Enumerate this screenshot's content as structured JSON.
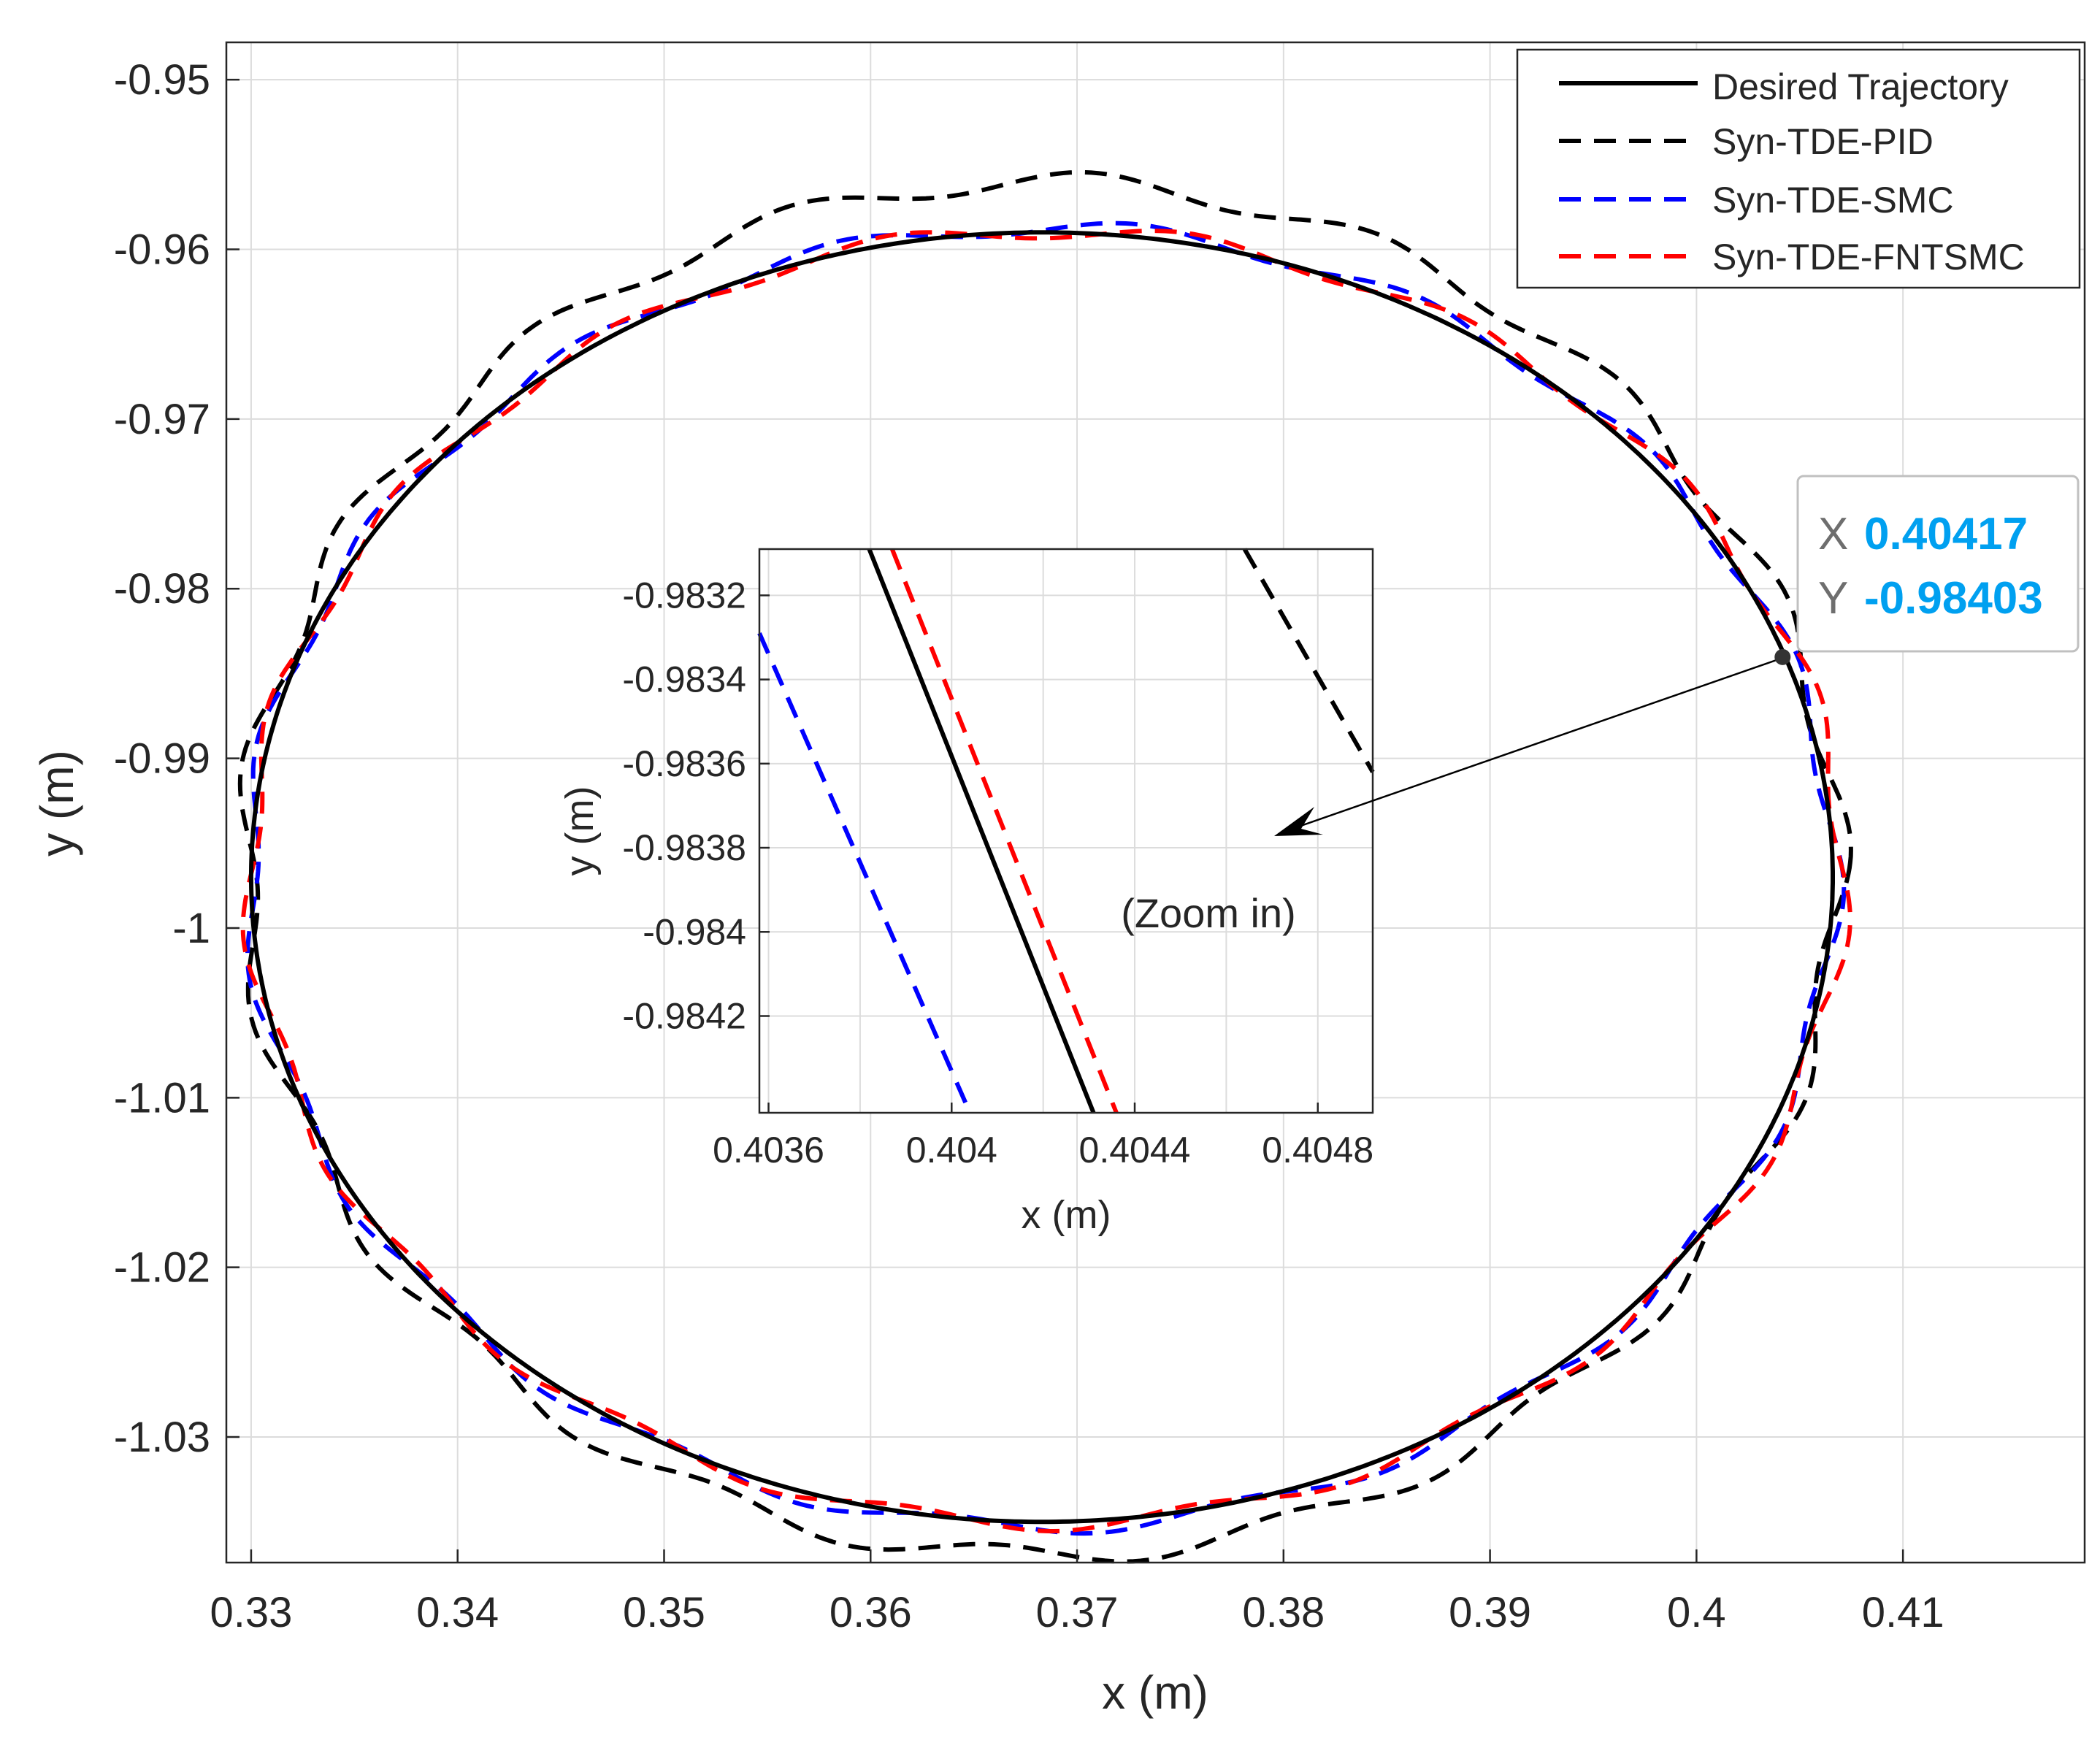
{
  "chart_data": {
    "type": "line",
    "xlabel": "x (m)",
    "ylabel": "y (m)",
    "xlim": [
      0.3288,
      0.4188
    ],
    "ylim": [
      -1.0374,
      -0.9478
    ],
    "xticks": [
      0.33,
      0.34,
      0.35,
      0.36,
      0.37,
      0.38,
      0.39,
      0.4,
      0.41
    ],
    "xtick_labels": [
      "0.33",
      "0.34",
      "0.35",
      "0.36",
      "0.37",
      "0.38",
      "0.39",
      "0.4",
      "0.41"
    ],
    "yticks": [
      -0.95,
      -0.96,
      -0.97,
      -0.98,
      -0.99,
      -1.0,
      -1.01,
      -1.02,
      -1.03
    ],
    "ytick_labels": [
      "-0.95",
      "-0.96",
      "-0.97",
      "-0.98",
      "-0.99",
      "-1",
      "-1.01",
      "-1.02",
      "-1.03"
    ],
    "grid": true,
    "legend_position": "top-right",
    "series": [
      {
        "name": "Desired Trajectory",
        "color": "#000000",
        "style": "solid",
        "shape": {
          "type": "ellipse",
          "center": [
            0.3683,
            -0.997
          ],
          "semi_axes": [
            0.0383,
            0.038
          ]
        }
      },
      {
        "name": "Syn-TDE-PID",
        "color": "#000000",
        "style": "dashed",
        "shape": {
          "type": "ellipse",
          "center": [
            0.3683,
            -0.9965
          ],
          "semi_axes": [
            0.0386,
            0.0405
          ]
        }
      },
      {
        "name": "Syn-TDE-SMC",
        "color": "#0000ff",
        "style": "dashed",
        "shape": {
          "type": "ellipse",
          "center": [
            0.3683,
            -0.997
          ],
          "semi_axes": [
            0.0384,
            0.0383
          ]
        }
      },
      {
        "name": "Syn-TDE-FNTSMC",
        "color": "#ff0000",
        "style": "dashed",
        "shape": {
          "type": "ellipse",
          "center": [
            0.3685,
            -0.997
          ],
          "semi_axes": [
            0.0386,
            0.0381
          ]
        }
      }
    ],
    "datatip": {
      "x_label": "X",
      "x_value": "0.40417",
      "y_label": "Y",
      "y_value": "-0.98403",
      "point": [
        0.40417,
        -0.98403
      ]
    },
    "inset": {
      "xlabel": "x (m)",
      "ylabel": "y (m)",
      "annotation": "(Zoom in)",
      "xlim": [
        0.40358,
        0.40492
      ],
      "ylim": [
        -0.98443,
        -0.98309
      ],
      "xticks": [
        0.4036,
        0.404,
        0.4044,
        0.4048
      ],
      "xtick_labels": [
        "0.4036",
        "0.404",
        "0.4044",
        "0.4048"
      ],
      "yticks": [
        -0.9832,
        -0.9834,
        -0.9836,
        -0.9838,
        -0.984,
        -0.9842
      ],
      "ytick_labels": [
        "-0.9832",
        "-0.9834",
        "-0.9836",
        "-0.9838",
        "-0.984",
        "-0.9842"
      ],
      "series": [
        {
          "name": "Desired Trajectory",
          "x": [
            0.40382,
            0.40431
          ],
          "y": [
            -0.98309,
            -0.98443
          ]
        },
        {
          "name": "Syn-TDE-FNTSMC",
          "x": [
            0.40387,
            0.40436
          ],
          "y": [
            -0.98309,
            -0.98443
          ]
        },
        {
          "name": "Syn-TDE-SMC",
          "x": [
            0.40358,
            0.40404
          ],
          "y": [
            -0.98329,
            -0.98443
          ]
        },
        {
          "name": "Syn-TDE-PID",
          "x": [
            0.40464,
            0.40492
          ],
          "y": [
            -0.98309,
            -0.98362
          ]
        }
      ]
    }
  }
}
